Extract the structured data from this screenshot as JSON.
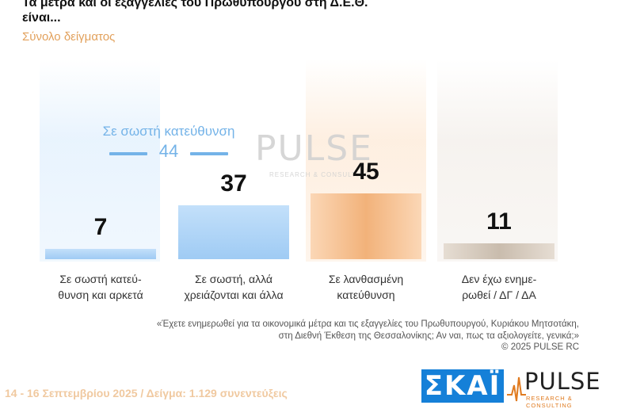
{
  "header": {
    "title": "Τα μέτρα και οι εξαγγελίες του Πρωθυπουργού στη Δ.Ε.Θ. είναι...",
    "subtitle": "Σύνολο δείγματος"
  },
  "chart_data": {
    "type": "bar",
    "title": "Τα μέτρα και οι εξαγγελίες του Πρωθυπουργού στη Δ.Ε.Θ. είναι...",
    "subtitle": "Σύνολο δείγματος",
    "unit": "%",
    "ylim": [
      0,
      60
    ],
    "categories": [
      "Σε σωστή κατεύ-θυνση και αρκετά",
      "Σε σωστή, αλλά χρειάζονται και άλλα",
      "Σε λανθασμένη κατεύθυνση",
      "Δεν έχω ενημε-ρωθεί / ΔΓ / ΔΑ"
    ],
    "values": [
      7,
      37,
      45,
      11
    ],
    "label_lines": [
      [
        "Σε σωστή κατεύ-",
        "θυνση και αρκετά"
      ],
      [
        "Σε σωστή, αλλά",
        "χρειάζονται και άλλα"
      ],
      [
        "Σε λανθασμένη",
        "κατεύθυνση"
      ],
      [
        "Δεν έχω ενημε-",
        "ρωθεί / ΔΓ / ΔΑ"
      ]
    ],
    "value_labels": [
      "7",
      "37",
      "45",
      "11"
    ],
    "combined_annotation": {
      "label": "Σε σωστή κατεύθυνση",
      "value": "44"
    },
    "colors": {
      "blue": "#9fcbf4",
      "blue_light": "#c3e0fa",
      "orange": "#f2b27a",
      "orange_light": "#fbd7b6",
      "gray": "#c9bcad",
      "gray_light": "#e6ddd3",
      "accent_text": "#74b3e8"
    }
  },
  "footer": {
    "question_line1": "«Έχετε ενημερωθεί για τα οικονομικά μέτρα και τις εξαγγελίες του Πρωθυπουργού, Κυριάκου Μητσοτάκη,",
    "question_line2": "στη Διεθνή Έκθεση της Θεσσαλονίκης; Αν ναι, πως τα αξιολογείτε, γενικά;»",
    "copyright": "©  2025  PULSE RC",
    "dates": "14 - 16 Σεπτεμβρίου 2025  /  Δείγμα:  1.129 συνεντεύξεις"
  },
  "logos": {
    "skai": "ΣΚΑΪ",
    "pulse_word": "PULSE",
    "pulse_sub": "RESEARCH & CONSULTING",
    "watermark_word": "PULSE",
    "watermark_sub": "RESEARCH & CONSULTING"
  }
}
